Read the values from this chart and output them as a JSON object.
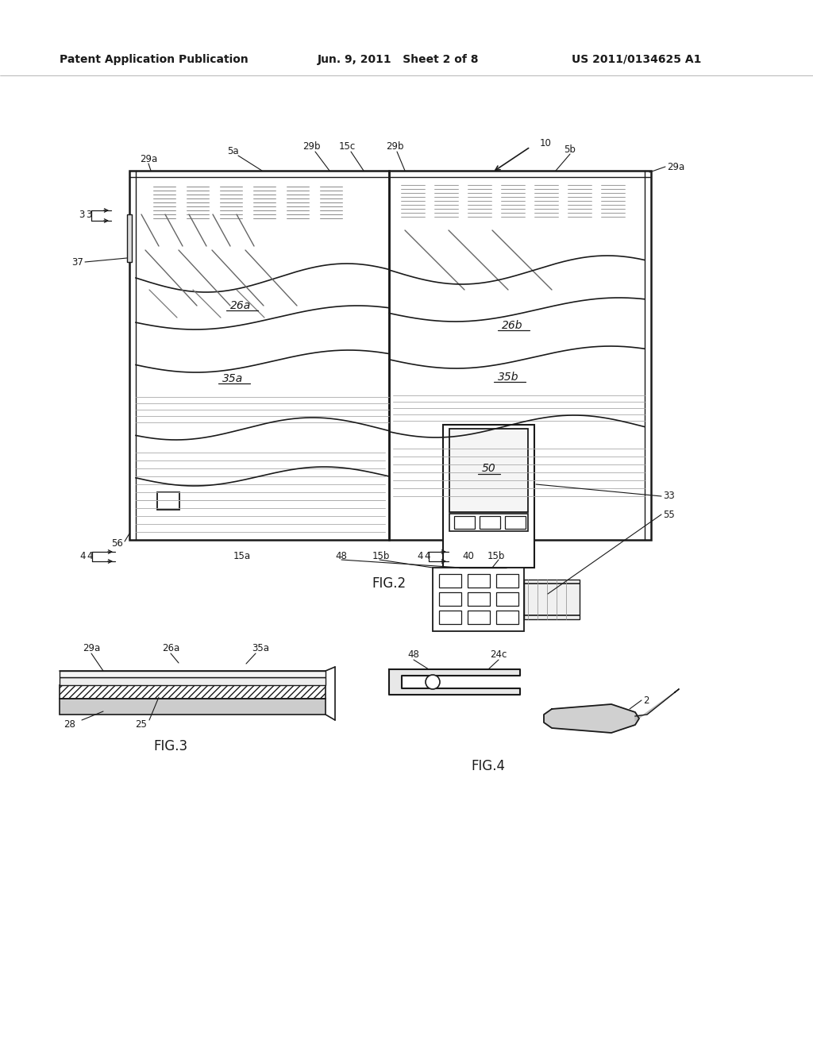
{
  "background_color": "#ffffff",
  "header_left": "Patent Application Publication",
  "header_mid": "Jun. 9, 2011   Sheet 2 of 8",
  "header_right": "US 2011/0134625 A1",
  "line_color": "#1a1a1a",
  "text_color": "#1a1a1a"
}
